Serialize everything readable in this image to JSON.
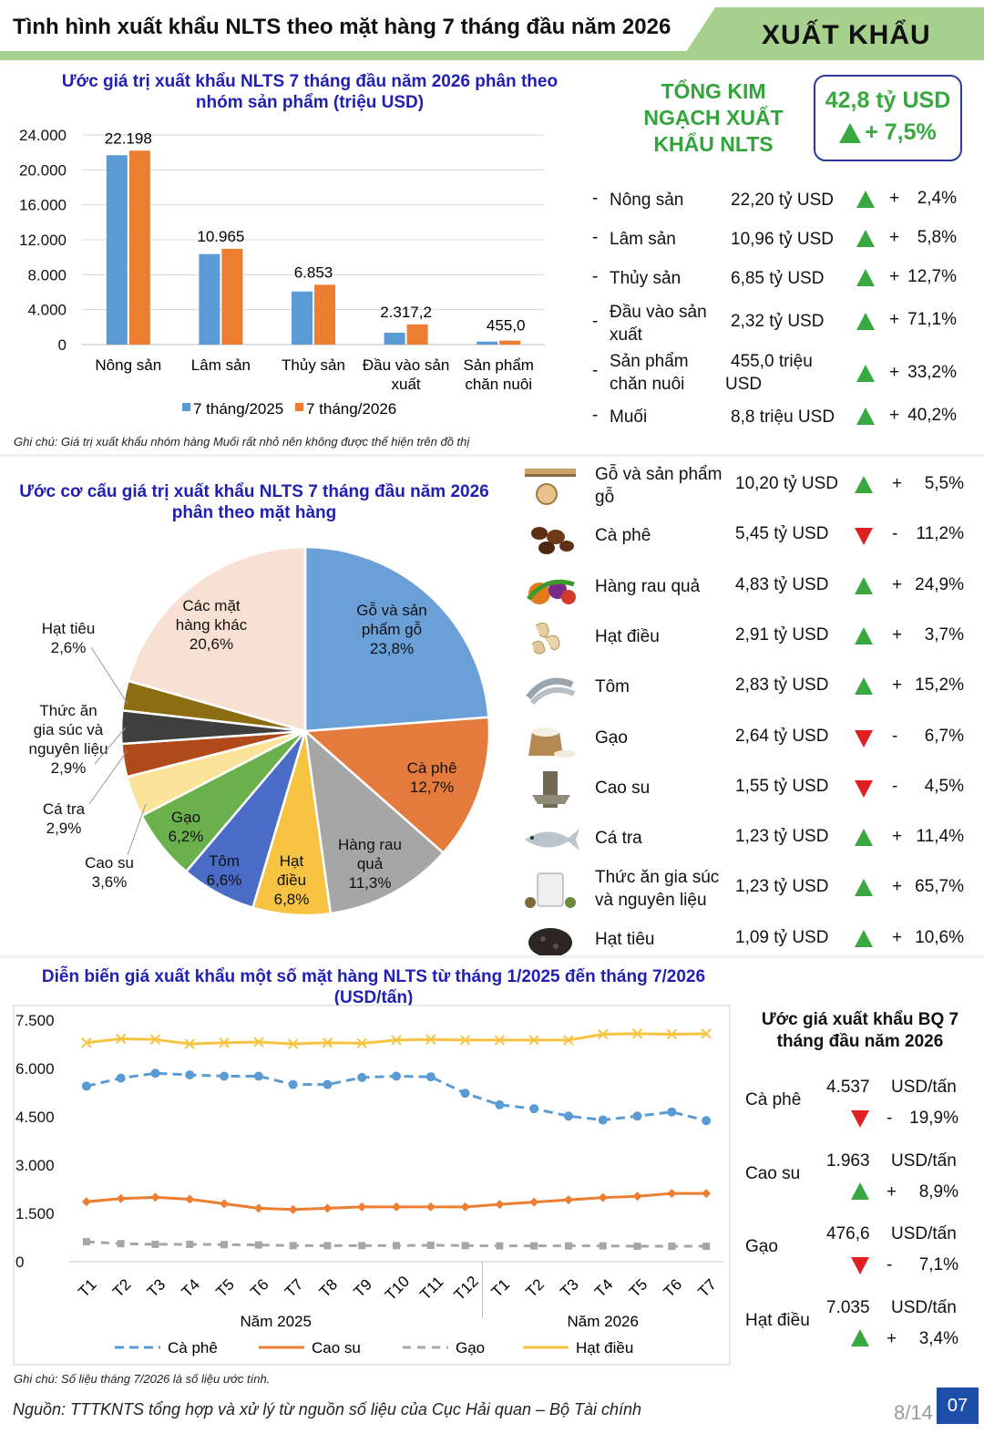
{
  "header": {
    "title": "Tình hình xuất khẩu NLTS theo mặt hàng 7 tháng đầu năm 2026",
    "section": "XUẤT KHẨU"
  },
  "total": {
    "label": "TỔNG KIM NGẠCH XUẤT KHẨU NLTS",
    "value": "42,8 tỷ USD",
    "change": "+ 7,5%"
  },
  "colors": {
    "series2025": "#5b9bd5",
    "series2026": "#ed7d31",
    "up": "#3aa840",
    "down": "#e02020",
    "title": "#1f1fb4"
  },
  "groups": [
    {
      "name": "Nông sản",
      "value": "22,20 tỷ USD",
      "sign": "+",
      "change": "2,4%",
      "dir": "up"
    },
    {
      "name": "Lâm sản",
      "value": "10,96 tỷ USD",
      "sign": "+",
      "change": "5,8%",
      "dir": "up"
    },
    {
      "name": "Thủy sản",
      "value": "6,85 tỷ USD",
      "sign": "+",
      "change": "12,7%",
      "dir": "up"
    },
    {
      "name": "Đầu vào sản xuất",
      "value": "2,32 tỷ USD",
      "sign": "+",
      "change": "71,1%",
      "dir": "up"
    },
    {
      "name": "Sản phẩm chăn nuôi",
      "value": "455,0 triệu USD",
      "sign": "+",
      "change": "33,2%",
      "dir": "up"
    },
    {
      "name": "Muối",
      "value": "8,8 triệu USD",
      "sign": "+",
      "change": "40,2%",
      "dir": "up"
    }
  ],
  "products": [
    {
      "name": "Gỗ và sản phẩm gỗ",
      "value": "10,20 tỷ USD",
      "sign": "+",
      "change": "5,5%",
      "dir": "up",
      "icon": "wood-icon"
    },
    {
      "name": "Cà phê",
      "value": "5,45 tỷ USD",
      "sign": "-",
      "change": "11,2%",
      "dir": "down",
      "icon": "coffee-icon"
    },
    {
      "name": "Hàng rau quả",
      "value": "4,83 tỷ USD",
      "sign": "+",
      "change": "24,9%",
      "dir": "up",
      "icon": "vegetables-icon"
    },
    {
      "name": "Hạt điều",
      "value": "2,91 tỷ USD",
      "sign": "+",
      "change": "3,7%",
      "dir": "up",
      "icon": "cashew-icon"
    },
    {
      "name": "Tôm",
      "value": "2,83 tỷ USD",
      "sign": "+",
      "change": "15,2%",
      "dir": "up",
      "icon": "shrimp-icon"
    },
    {
      "name": "Gạo",
      "value": "2,64 tỷ USD",
      "sign": "-",
      "change": "6,7%",
      "dir": "down",
      "icon": "rice-icon"
    },
    {
      "name": "Cao su",
      "value": "1,55 tỷ USD",
      "sign": "-",
      "change": "4,5%",
      "dir": "down",
      "icon": "rubber-icon"
    },
    {
      "name": "Cá tra",
      "value": "1,23 tỷ USD",
      "sign": "+",
      "change": "11,4%",
      "dir": "up",
      "icon": "fish-icon"
    },
    {
      "name": "Thức ăn gia súc và nguyên liệu",
      "value": "1,23 tỷ USD",
      "sign": "+",
      "change": "65,7%",
      "dir": "up",
      "icon": "feed-icon"
    },
    {
      "name": "Hạt tiêu",
      "value": "1,09 tỷ USD",
      "sign": "+",
      "change": "10,6%",
      "dir": "up",
      "icon": "pepper-icon"
    }
  ],
  "avg_prices": {
    "title": "Ước giá xuất khẩu BQ 7 tháng đầu năm 2026",
    "items": [
      {
        "name": "Cà phê",
        "value": "4.537",
        "unit": "USD/tấn",
        "sign": "-",
        "change": "19,9%",
        "dir": "down"
      },
      {
        "name": "Cao su",
        "value": "1.963",
        "unit": "USD/tấn",
        "sign": "+",
        "change": "8,9%",
        "dir": "up"
      },
      {
        "name": "Gạo",
        "value": "476,6",
        "unit": "USD/tấn",
        "sign": "-",
        "change": "7,1%",
        "dir": "down"
      },
      {
        "name": "Hạt điều",
        "value": "7.035",
        "unit": "USD/tấn",
        "sign": "+",
        "change": "3,4%",
        "dir": "up"
      }
    ]
  },
  "notes": {
    "bar": "Ghi chú: Giá trị xuất khẩu nhóm hàng Muối rất nhỏ nên không được thể hiện trên đồ thị",
    "line": "Ghi chú: Số liệu tháng 7/2026 là số liệu ước tính.",
    "source": "Nguồn: TTTKNTS tổng hợp và xử lý từ nguồn số liệu của Cục Hải quan – Bộ Tài chính",
    "page": "8/14",
    "page_no": "07"
  },
  "chart_data": [
    {
      "type": "bar",
      "title": "Ước giá trị xuất khẩu NLTS 7 tháng đầu năm 2026 phân theo nhóm sản phẩm (triệu USD)",
      "categories": [
        "Nông sản",
        "Lâm sản",
        "Thủy sản",
        "Đầu vào sản xuất",
        "Sản phẩm chăn nuôi"
      ],
      "series": [
        {
          "name": "7 tháng/2025",
          "values": [
            21680,
            10360,
            6080,
            1355,
            342
          ]
        },
        {
          "name": "7 tháng/2026",
          "values": [
            22198,
            10965,
            6853,
            2317.2,
            455.0
          ]
        }
      ],
      "data_labels": [
        "22.198",
        "10.965",
        "6.853",
        "2.317,2",
        "455,0"
      ],
      "yticks": [
        "0",
        "4.000",
        "8.000",
        "12.000",
        "16.000",
        "20.000",
        "24.000"
      ],
      "ylim": [
        0,
        24000
      ],
      "legend": "bottom",
      "grid": true
    },
    {
      "type": "pie",
      "title": "Ước cơ cấu giá trị xuất khẩu NLTS 7 tháng đầu năm 2026 phân theo mặt hàng",
      "slices": [
        {
          "label": "Gỗ và sản phẩm gỗ",
          "pct": "23,8%",
          "value": 23.8,
          "color": "#6a9fd8"
        },
        {
          "label": "Cà phê",
          "pct": "12,7%",
          "value": 12.7,
          "color": "#e47b3c"
        },
        {
          "label": "Hàng rau quả",
          "pct": "11,3%",
          "value": 11.3,
          "color": "#a6a6a6"
        },
        {
          "label": "Hạt điều",
          "pct": "6,8%",
          "value": 6.8,
          "color": "#f6c342"
        },
        {
          "label": "Tôm",
          "pct": "6,6%",
          "value": 6.6,
          "color": "#4a6cc6"
        },
        {
          "label": "Gạo",
          "pct": "6,2%",
          "value": 6.2,
          "color": "#6ab04c"
        },
        {
          "label": "Cao su",
          "pct": "3,6%",
          "value": 3.6,
          "color": "#fbe39a"
        },
        {
          "label": "Cá tra",
          "pct": "2,9%",
          "value": 2.9,
          "color": "#b04a1a"
        },
        {
          "label": "Thức ăn gia súc và nguyên liệu",
          "pct": "2,9%",
          "value": 2.9,
          "color": "#3f3f3f"
        },
        {
          "label": "Hạt tiêu",
          "pct": "2,6%",
          "value": 2.6,
          "color": "#8c6d12"
        },
        {
          "label": "Các mặt hàng khác",
          "pct": "20,6%",
          "value": 20.6,
          "color": "#f8e0d2"
        }
      ]
    },
    {
      "type": "line",
      "title": "Diễn biến giá xuất khẩu một số mặt hàng NLTS từ tháng 1/2025 đến tháng 7/2026 (USD/tấn)",
      "x": [
        "T1",
        "T2",
        "T3",
        "T4",
        "T5",
        "T6",
        "T7",
        "T8",
        "T9",
        "T10",
        "T11",
        "T12",
        "T1",
        "T2",
        "T3",
        "T4",
        "T5",
        "T6",
        "T7"
      ],
      "groups": [
        {
          "label": "Năm 2025",
          "count": 12
        },
        {
          "label": "Năm 2026",
          "count": 7
        }
      ],
      "yticks": [
        "0",
        "1.500",
        "3.000",
        "4.500",
        "6.000",
        "7.500"
      ],
      "ylim": [
        0,
        7500
      ],
      "legend": "bottom",
      "grid": false,
      "series": [
        {
          "name": "Cà phê",
          "color": "#5b9bd5",
          "dash": "10,6",
          "values": [
            5450,
            5700,
            5850,
            5800,
            5760,
            5760,
            5500,
            5500,
            5720,
            5760,
            5740,
            5230,
            4870,
            4750,
            4520,
            4400,
            4520,
            4650,
            4380
          ]
        },
        {
          "name": "Cao su",
          "color": "#ed7d31",
          "dash": "",
          "values": [
            1860,
            1960,
            2000,
            1940,
            1800,
            1660,
            1620,
            1660,
            1700,
            1700,
            1700,
            1700,
            1780,
            1850,
            1920,
            1990,
            2030,
            2120,
            2120
          ]
        },
        {
          "name": "Gạo",
          "color": "#a6a6a6",
          "dash": "9,7",
          "values": [
            620,
            560,
            540,
            540,
            530,
            520,
            500,
            500,
            500,
            500,
            510,
            500,
            490,
            490,
            490,
            490,
            480,
            480,
            480
          ]
        },
        {
          "name": "Hạt điều",
          "color": "#f6c342",
          "dash": "",
          "values": [
            6800,
            6920,
            6900,
            6760,
            6800,
            6820,
            6760,
            6800,
            6780,
            6880,
            6900,
            6880,
            6880,
            6880,
            6880,
            7060,
            7080,
            7060,
            7080
          ]
        }
      ]
    }
  ]
}
